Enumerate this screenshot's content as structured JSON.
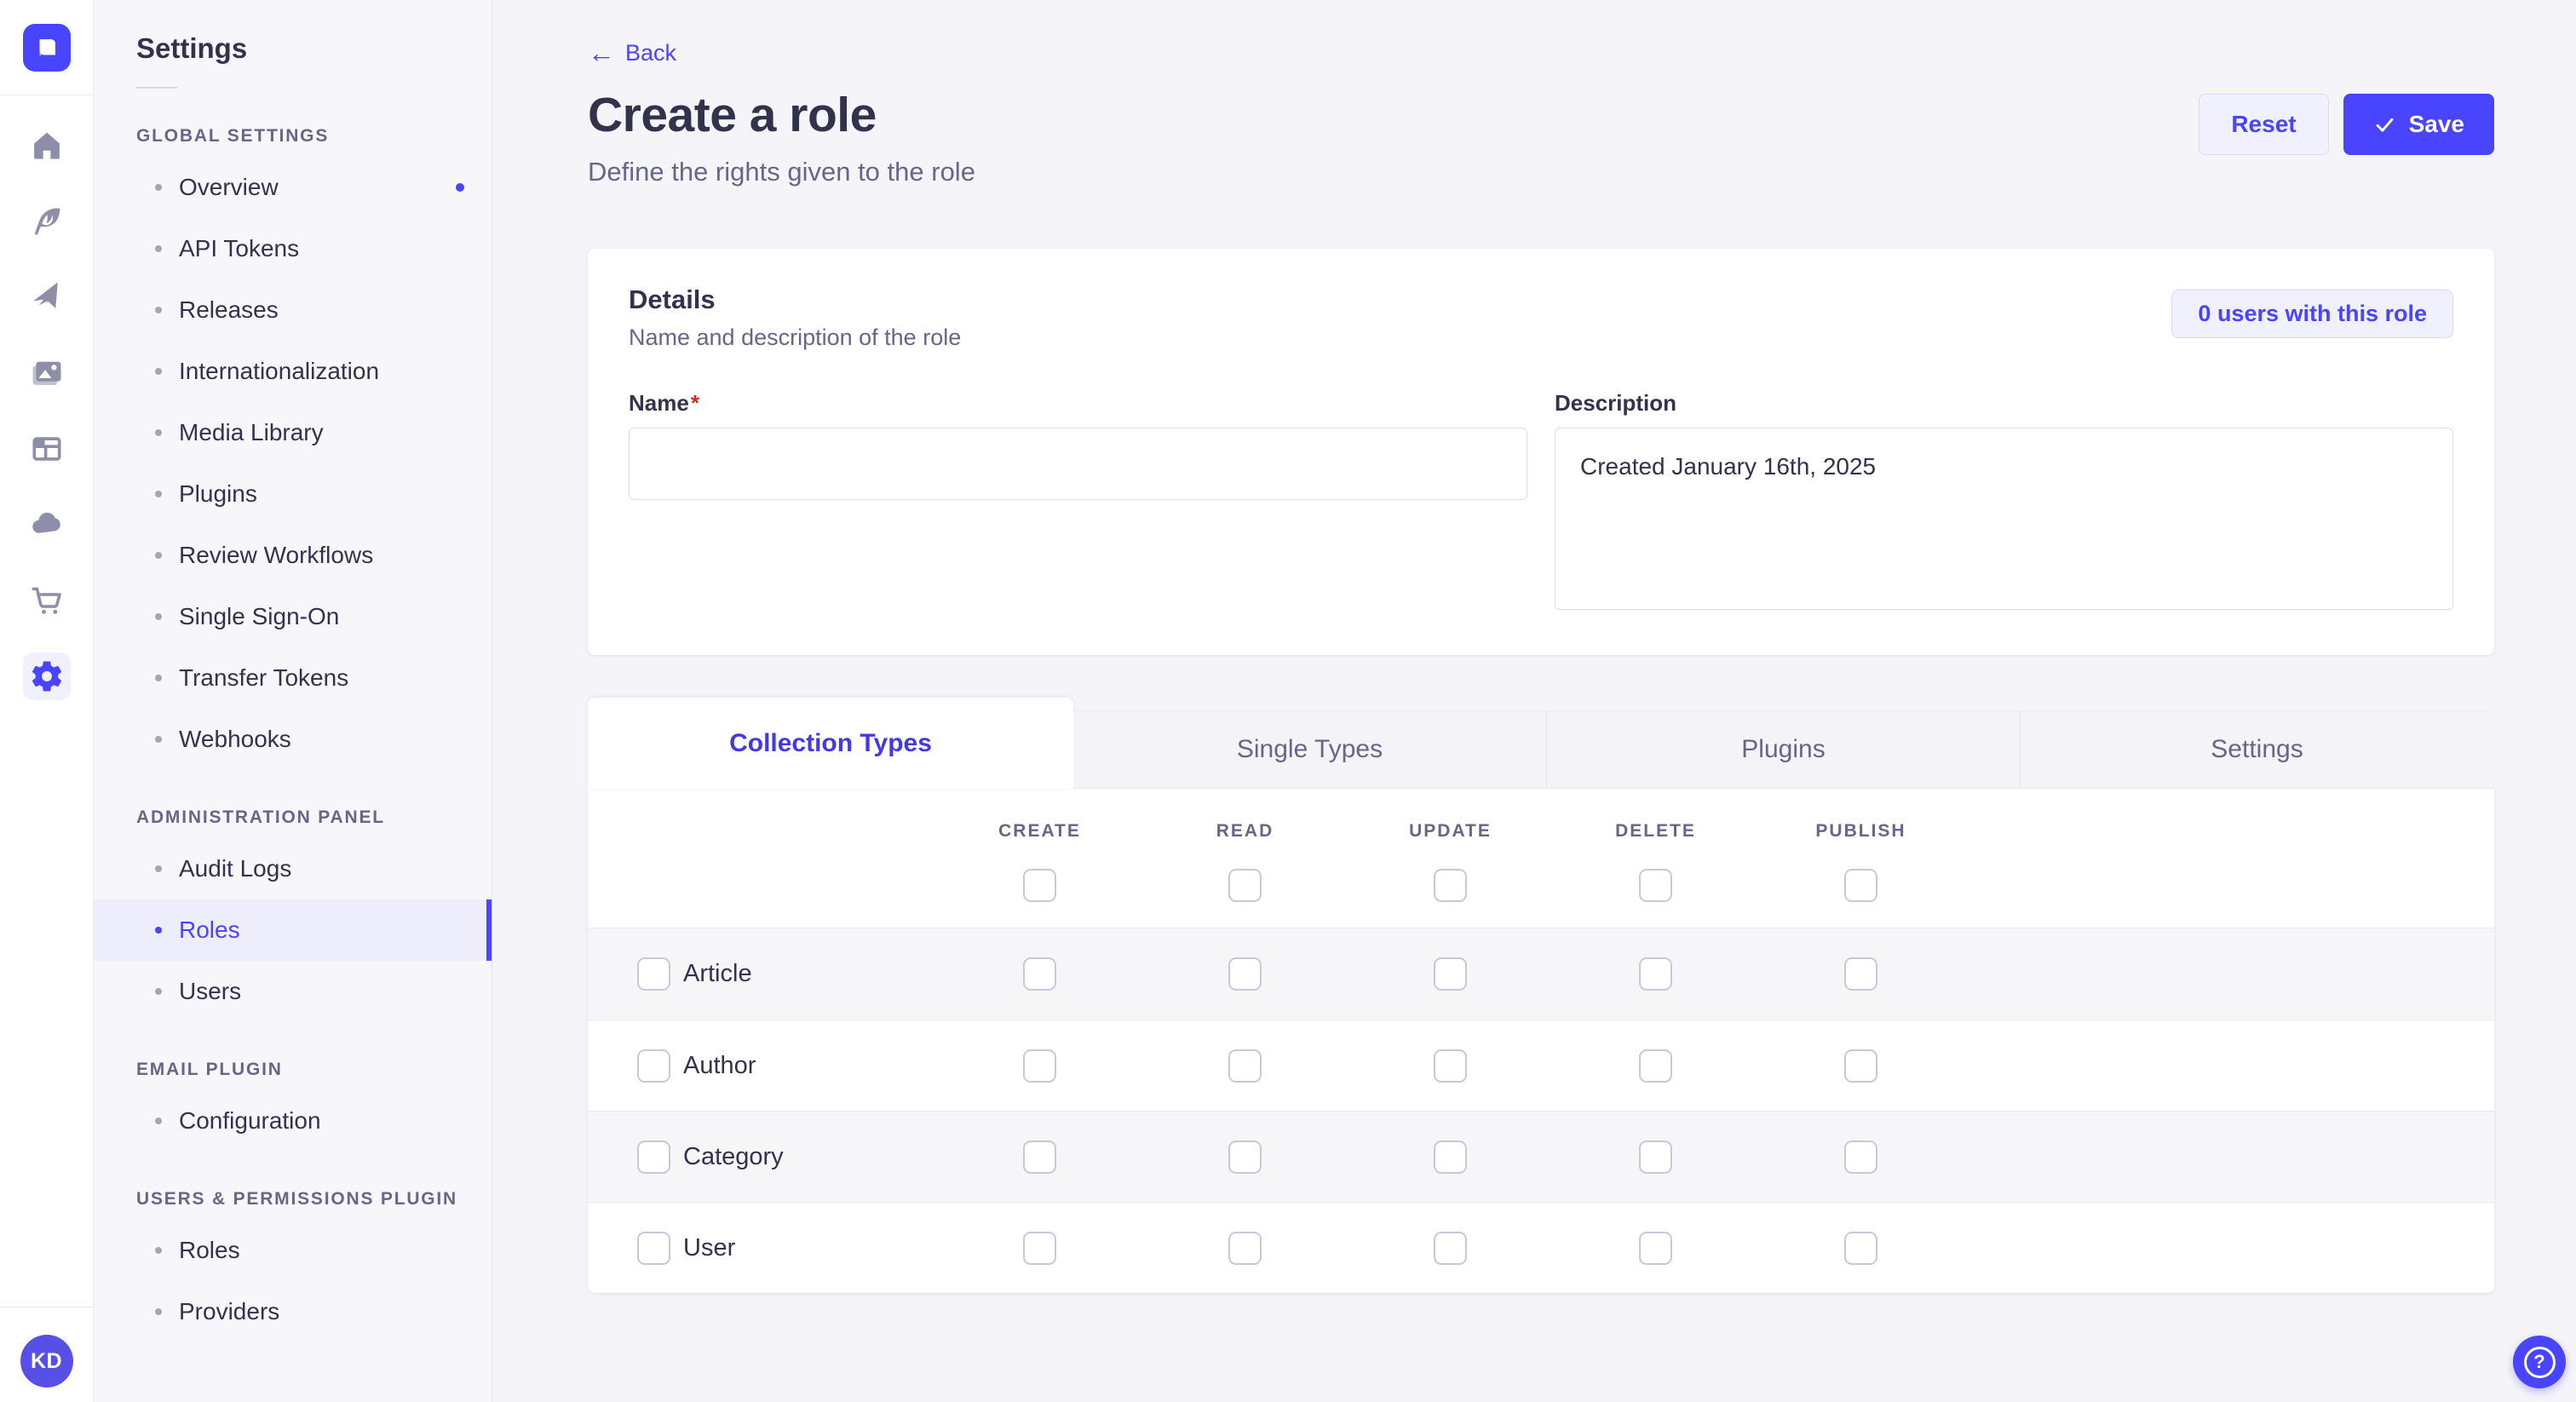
{
  "colors": {
    "primary": "#4945ff",
    "primary_light": "#f0f0ff",
    "primary_border": "#d9d8ff",
    "danger": "#d02b20",
    "text_dark": "#32324d",
    "text_muted": "#666687"
  },
  "rail": {
    "logo_icon": "strapi-logo",
    "icons": [
      "home-icon",
      "feather-icon",
      "paper-plane-icon",
      "media-library-icon",
      "layout-icon",
      "cloud-icon",
      "marketplace-cart-icon",
      "settings-gear-icon"
    ],
    "active_icon": "settings-gear-icon",
    "avatar_initials": "KD"
  },
  "sidebar": {
    "title": "Settings",
    "sections": [
      {
        "label": "GLOBAL SETTINGS",
        "items": [
          {
            "label": "Overview",
            "active": false,
            "dot": true
          },
          {
            "label": "API Tokens",
            "active": false,
            "dot": false
          },
          {
            "label": "Releases",
            "active": false,
            "dot": false
          },
          {
            "label": "Internationalization",
            "active": false,
            "dot": false
          },
          {
            "label": "Media Library",
            "active": false,
            "dot": false
          },
          {
            "label": "Plugins",
            "active": false,
            "dot": false
          },
          {
            "label": "Review Workflows",
            "active": false,
            "dot": false
          },
          {
            "label": "Single Sign-On",
            "active": false,
            "dot": false
          },
          {
            "label": "Transfer Tokens",
            "active": false,
            "dot": false
          },
          {
            "label": "Webhooks",
            "active": false,
            "dot": false
          }
        ]
      },
      {
        "label": "ADMINISTRATION PANEL",
        "items": [
          {
            "label": "Audit Logs",
            "active": false,
            "dot": false
          },
          {
            "label": "Roles",
            "active": true,
            "dot": false
          },
          {
            "label": "Users",
            "active": false,
            "dot": false
          }
        ]
      },
      {
        "label": "EMAIL PLUGIN",
        "items": [
          {
            "label": "Configuration",
            "active": false,
            "dot": false
          }
        ]
      },
      {
        "label": "USERS & PERMISSIONS PLUGIN",
        "items": [
          {
            "label": "Roles",
            "active": false,
            "dot": false
          },
          {
            "label": "Providers",
            "active": false,
            "dot": false
          }
        ]
      }
    ]
  },
  "header": {
    "back": "Back",
    "title": "Create a role",
    "subtitle": "Define the rights given to the role",
    "reset": "Reset",
    "save": "Save"
  },
  "details": {
    "title": "Details",
    "subtitle": "Name and description of the role",
    "users_count_button": "0 users with this role",
    "name_label": "Name",
    "required": "*",
    "name_value": "",
    "description_label": "Description",
    "description_value": "Created January 16th, 2025"
  },
  "permissions": {
    "tabs": [
      {
        "label": "Collection Types",
        "active": true
      },
      {
        "label": "Single Types",
        "active": false
      },
      {
        "label": "Plugins",
        "active": false
      },
      {
        "label": "Settings",
        "active": false
      }
    ],
    "columns": [
      "CREATE",
      "READ",
      "UPDATE",
      "DELETE",
      "PUBLISH"
    ],
    "select_all_row": [
      false,
      false,
      false,
      false,
      false
    ],
    "rows": [
      {
        "label": "Article",
        "selected": false,
        "checks": [
          false,
          false,
          false,
          false,
          false
        ]
      },
      {
        "label": "Author",
        "selected": false,
        "checks": [
          false,
          false,
          false,
          false,
          false
        ]
      },
      {
        "label": "Category",
        "selected": false,
        "checks": [
          false,
          false,
          false,
          false,
          false
        ]
      },
      {
        "label": "User",
        "selected": false,
        "checks": [
          false,
          false,
          false,
          false,
          false
        ]
      }
    ]
  },
  "help": {
    "icon": "question-mark-icon"
  }
}
